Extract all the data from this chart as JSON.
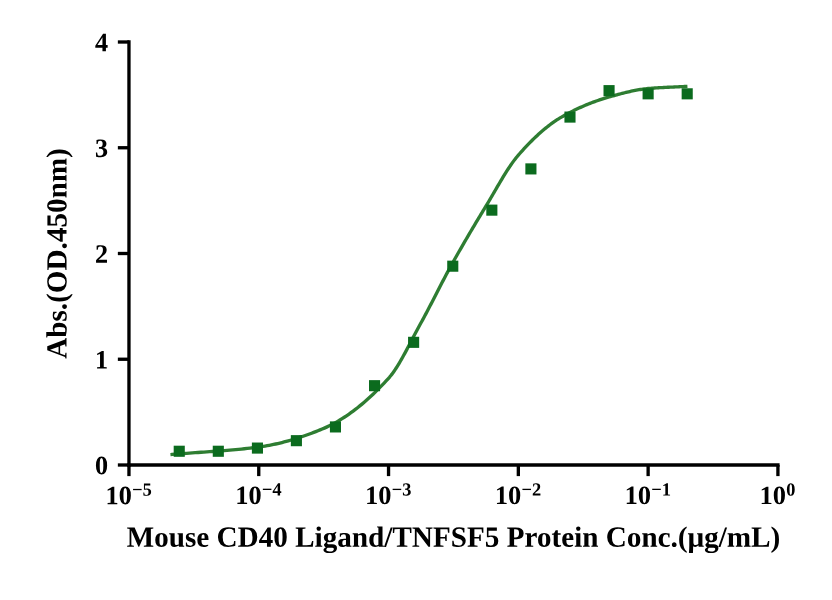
{
  "chart_data": {
    "type": "scatter",
    "xlabel": "Mouse CD40 Ligand/TNFSF5 Protein Conc.(μg/mL)",
    "ylabel": "Abs.(OD.450nm)",
    "log": "x",
    "grid": false,
    "marker": "square",
    "series": [
      {
        "color": "#0b6b1e",
        "x": [
          2.44e-05,
          4.88e-05,
          9.77e-05,
          0.000195,
          0.00039,
          0.00078,
          0.00156,
          0.003125,
          0.00625,
          0.0125,
          0.025,
          0.05,
          0.1,
          0.2
        ],
        "values": [
          0.13,
          0.13,
          0.16,
          0.23,
          0.36,
          0.75,
          1.16,
          1.88,
          2.41,
          2.8,
          3.29,
          3.54,
          3.51,
          3.51
        ]
      },
      {
        "type": "line",
        "color": "#2e7d32",
        "marker": "none",
        "x": [
          2.15e-05,
          0.0001,
          0.000308,
          0.001,
          0.00177,
          0.00305,
          0.00558,
          0.01,
          0.0215,
          0.05,
          0.1,
          0.195
        ],
        "values": [
          0.1,
          0.17,
          0.34,
          0.82,
          1.34,
          1.89,
          2.44,
          2.93,
          3.29,
          3.48,
          3.56,
          3.58
        ]
      }
    ],
    "xlim": [
      1e-05,
      1
    ],
    "xticks": [
      {
        "value": 1e-05,
        "label": "10$^{−5}$"
      },
      {
        "value": 0.0001,
        "label": "10$^{−4}$"
      },
      {
        "value": 0.001,
        "label": "10$^{−3}$"
      },
      {
        "value": 0.01,
        "label": "10$^{−2}$"
      },
      {
        "value": 0.1,
        "label": "10$^{−1}$"
      },
      {
        "value": 1,
        "label": "10$^{0}$"
      }
    ],
    "ylim": [
      0,
      4
    ],
    "yticks": [
      0,
      1,
      2,
      3,
      4
    ]
  }
}
